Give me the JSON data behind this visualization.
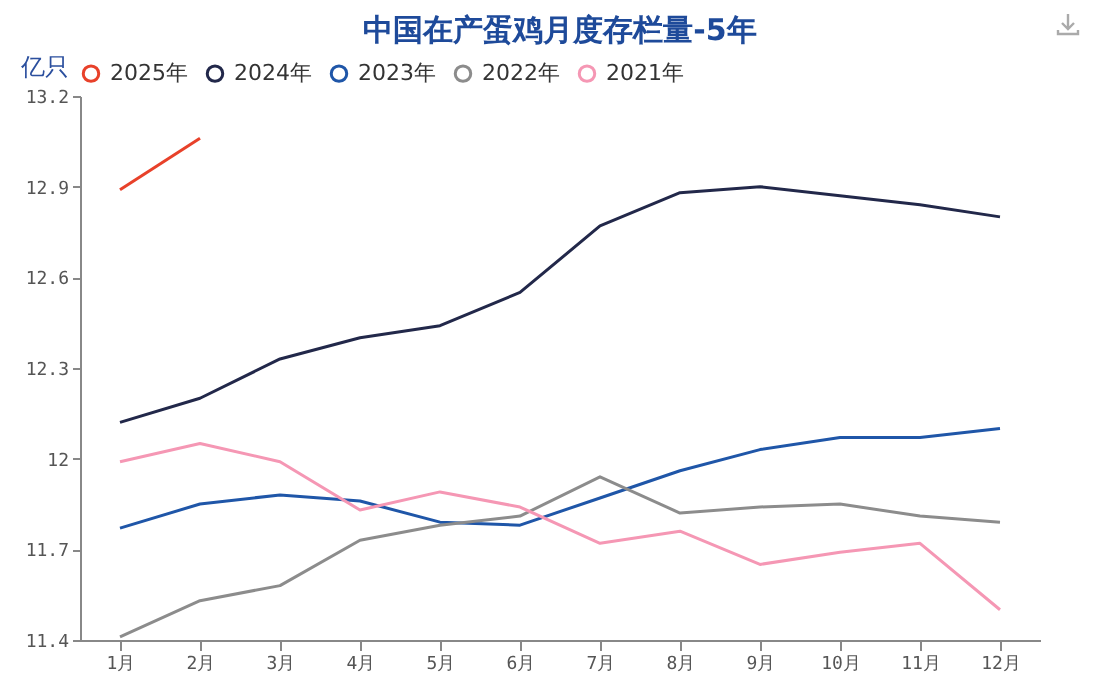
{
  "chart_data": {
    "type": "line",
    "title": "中国在产蛋鸡月度存栏量-5年",
    "ylabel": "亿只",
    "categories": [
      "1月",
      "2月",
      "3月",
      "4月",
      "5月",
      "6月",
      "7月",
      "8月",
      "9月",
      "10月",
      "11月",
      "12月"
    ],
    "series": [
      {
        "name": "2025年",
        "color": "#e8412a",
        "values": [
          12.89,
          13.06,
          null,
          null,
          null,
          null,
          null,
          null,
          null,
          null,
          null,
          null
        ]
      },
      {
        "name": "2024年",
        "color": "#22284a",
        "values": [
          12.12,
          12.2,
          12.33,
          12.4,
          12.44,
          12.55,
          12.77,
          12.88,
          12.9,
          12.87,
          12.84,
          12.8
        ]
      },
      {
        "name": "2023年",
        "color": "#1f56a8",
        "values": [
          11.77,
          11.85,
          11.88,
          11.86,
          11.79,
          11.78,
          11.87,
          11.96,
          12.03,
          12.07,
          12.07,
          12.1
        ]
      },
      {
        "name": "2022年",
        "color": "#8c8c8c",
        "values": [
          11.41,
          11.53,
          11.58,
          11.73,
          11.78,
          11.81,
          11.94,
          11.82,
          11.84,
          11.85,
          11.81,
          11.79
        ]
      },
      {
        "name": "2021年",
        "color": "#f597b4",
        "values": [
          11.99,
          12.05,
          11.99,
          11.83,
          11.89,
          11.84,
          11.72,
          11.76,
          11.65,
          11.69,
          11.72,
          11.5
        ]
      }
    ],
    "ylim": [
      11.4,
      13.2
    ],
    "yticks": [
      11.4,
      11.7,
      {
        "value": 12,
        "label": "12"
      },
      12.3,
      12.6,
      12.9,
      13.2
    ],
    "grid": false,
    "legend": "top",
    "marker": "none",
    "line_style": "solid"
  }
}
